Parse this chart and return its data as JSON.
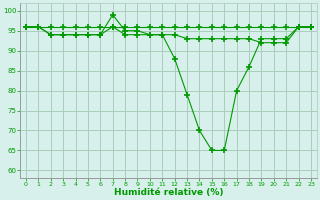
{
  "title": "",
  "xlabel": "Humidité relative (%)",
  "ylabel": "",
  "background_color": "#d7f0eb",
  "grid_color": "#aaccbb",
  "line_color": "#009900",
  "xlim": [
    -0.5,
    23.5
  ],
  "ylim": [
    58,
    102
  ],
  "yticks": [
    60,
    65,
    70,
    75,
    80,
    85,
    90,
    95,
    100
  ],
  "xticks": [
    0,
    1,
    2,
    3,
    4,
    5,
    6,
    7,
    8,
    9,
    10,
    11,
    12,
    13,
    14,
    15,
    16,
    17,
    18,
    19,
    20,
    21,
    22,
    23
  ],
  "series1": [
    96,
    96,
    96,
    96,
    96,
    96,
    96,
    96,
    96,
    96,
    96,
    96,
    96,
    96,
    96,
    96,
    96,
    96,
    96,
    96,
    96,
    96,
    96,
    96
  ],
  "series2": [
    96,
    96,
    94,
    94,
    94,
    94,
    94,
    99,
    95,
    95,
    94,
    94,
    88,
    79,
    70,
    65,
    65,
    80,
    86,
    93,
    93,
    93,
    96,
    96
  ],
  "series3": [
    96,
    96,
    94,
    94,
    94,
    94,
    94,
    96,
    94,
    94,
    94,
    94,
    94,
    93,
    93,
    93,
    93,
    93,
    93,
    92,
    92,
    92,
    96,
    96
  ]
}
